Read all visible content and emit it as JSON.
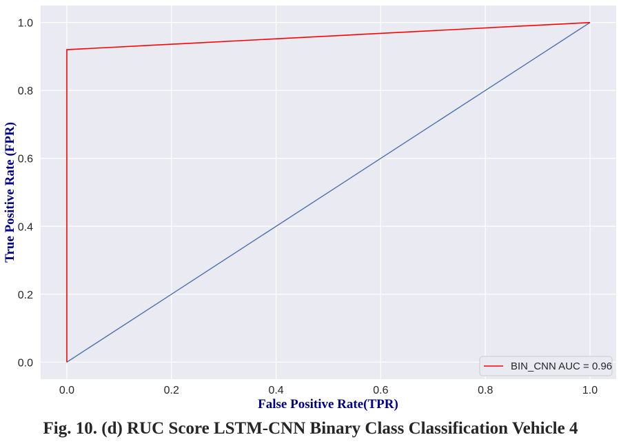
{
  "chart_data": {
    "type": "line",
    "xlabel": "False Positive Rate(TPR)",
    "ylabel": "True Positive Rate (FPR)",
    "xlim": [
      -0.05,
      1.05
    ],
    "ylim": [
      -0.05,
      1.05
    ],
    "x_ticks": [
      "0.0",
      "0.2",
      "0.4",
      "0.6",
      "0.8",
      "1.0"
    ],
    "y_ticks": [
      "0.0",
      "0.2",
      "0.4",
      "0.6",
      "0.8",
      "1.0"
    ],
    "grid": true,
    "legend_position": "lower-right",
    "series": [
      {
        "name": "BIN_CNN AUC = 0.96",
        "color": "#ff0000",
        "x": [
          0.0,
          0.0,
          1.0
        ],
        "y": [
          0.0,
          0.92,
          1.0
        ]
      },
      {
        "color": "#4c72b0",
        "x": [
          0.0,
          1.0
        ],
        "y": [
          0.0,
          1.0
        ]
      }
    ]
  },
  "caption": "Fig. 10. (d) RUC Score LSTM-CNN Binary Class Classification Vehicle 4"
}
